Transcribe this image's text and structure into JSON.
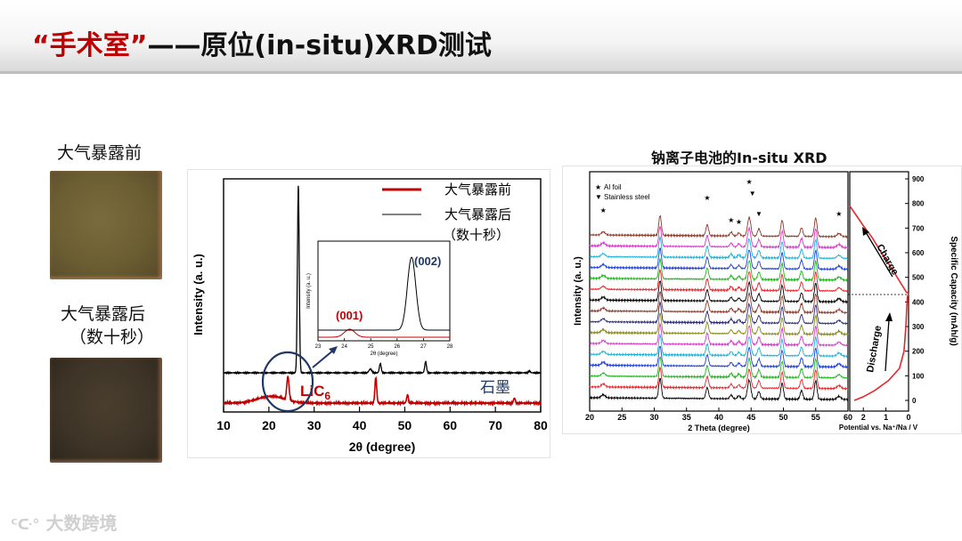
{
  "slide": {
    "title_part1": "“手术室”",
    "title_part2": "——原位(in-situ)XRD测试",
    "label_before": "大气暴露前",
    "label_after_1": "大气暴露后",
    "label_after_2": "（数十秒）",
    "right_title": "钠离子电池的In-situ XRD",
    "watermark": "大数跨境",
    "colors": {
      "title_red": "#c00000",
      "swatch_before": "#6b5e33",
      "swatch_after": "#3e3427"
    }
  },
  "chart_data": [
    {
      "type": "line",
      "xlabel": "2θ (degree)",
      "ylabel": "Intensity (a. u.)",
      "xlim": [
        10,
        80
      ],
      "xticks": [
        "10",
        "20",
        "30",
        "40",
        "50",
        "60",
        "70",
        "80"
      ],
      "legend": [
        {
          "name": "大气暴露前",
          "color": "#c00000"
        },
        {
          "name": "大气暴露后",
          "color": "#000000"
        },
        {
          "name": "（数十秒）",
          "color": "#000000"
        }
      ],
      "annotations": {
        "graphite": "石墨",
        "licx": "LiC",
        "licx_sub": "6",
        "peak_001": "(001)",
        "peak_002": "(002)"
      },
      "series": [
        {
          "name": "大气暴露前",
          "color": "#c00000",
          "peaks": [
            [
              20.5,
              0.07,
              3
            ],
            [
              24.2,
              0.24,
              0.25
            ],
            [
              43.6,
              0.26,
              0.2
            ],
            [
              50.6,
              0.08,
              0.2
            ],
            [
              74.2,
              0.05,
              0.2
            ]
          ]
        },
        {
          "name": "大气暴露后",
          "color": "#000000",
          "peaks": [
            [
              26.5,
              1.0,
              0.2
            ],
            [
              42.4,
              0.02,
              0.3
            ],
            [
              44.6,
              0.05,
              0.2
            ],
            [
              54.6,
              0.06,
              0.2
            ],
            [
              77.5,
              0.01,
              0.2
            ]
          ]
        }
      ],
      "inset": {
        "xlabel": "2θ (degree)",
        "ylabel": "Intensity (a. u.)",
        "xlim": [
          23,
          28
        ],
        "xticks": [
          "23",
          "24",
          "25",
          "26",
          "27",
          "28"
        ]
      }
    },
    {
      "type": "line",
      "title": "钠离子电池的In-situ XRD",
      "xlabel": "2 Theta (degree)",
      "ylabel": "Intensity (a. u.)",
      "xlim": [
        20,
        60
      ],
      "xticks": [
        "20",
        "25",
        "30",
        "35",
        "40",
        "45",
        "50",
        "55",
        "60"
      ],
      "legend": [
        {
          "name": "Al foil",
          "marker": "★"
        },
        {
          "name": "Stainless steel",
          "marker": "▼"
        }
      ],
      "series_count": 16,
      "series_colors": [
        "#000000",
        "#e8262c",
        "#1fb51f",
        "#1f3fd8",
        "#19b3d8",
        "#d838c9",
        "#8a8a1a",
        "#2a2a7a",
        "#8b3a2a",
        "#000000",
        "#e8262c",
        "#1fb51f",
        "#1f3fd8",
        "#19b3d8",
        "#d838c9",
        "#8b3a2a"
      ],
      "peaks": [
        [
          22.1,
          0.25,
          0.3
        ],
        [
          30.9,
          1.6,
          0.2
        ],
        [
          38.2,
          0.9,
          0.2
        ],
        [
          41.9,
          0.3,
          0.2
        ],
        [
          43.1,
          0.25,
          0.2
        ],
        [
          44.7,
          1.5,
          0.25
        ],
        [
          46.2,
          0.6,
          0.2
        ],
        [
          49.8,
          1.3,
          0.2
        ],
        [
          52.8,
          0.7,
          0.2
        ],
        [
          55.0,
          1.5,
          0.2
        ],
        [
          58.6,
          0.25,
          0.3
        ]
      ],
      "secondary": {
        "xlabel": "Potential vs. Na⁺/Na / V",
        "ylabel": "Specific Capacity (mAh/g)",
        "xticks": [
          "2",
          "1",
          "0"
        ],
        "yticks": [
          "0",
          "100",
          "200",
          "300",
          "400",
          "500",
          "600",
          "700",
          "800",
          "900"
        ],
        "ylim": [
          0,
          900
        ],
        "charge_label": "Charge",
        "discharge_label": "Discharge",
        "charge_curve": [
          [
            0.0,
            435
          ],
          [
            0.1,
            440
          ],
          [
            0.3,
            470
          ],
          [
            0.7,
            530
          ],
          [
            1.2,
            600
          ],
          [
            1.6,
            660
          ],
          [
            2.0,
            710
          ],
          [
            2.3,
            750
          ],
          [
            2.6,
            790
          ]
        ],
        "discharge_curve": [
          [
            0.0,
            435
          ],
          [
            0.05,
            420
          ],
          [
            0.08,
            380
          ],
          [
            0.12,
            300
          ],
          [
            0.2,
            200
          ],
          [
            0.4,
            130
          ],
          [
            0.9,
            80
          ],
          [
            1.5,
            40
          ],
          [
            2.0,
            15
          ],
          [
            2.4,
            0
          ]
        ]
      }
    }
  ]
}
